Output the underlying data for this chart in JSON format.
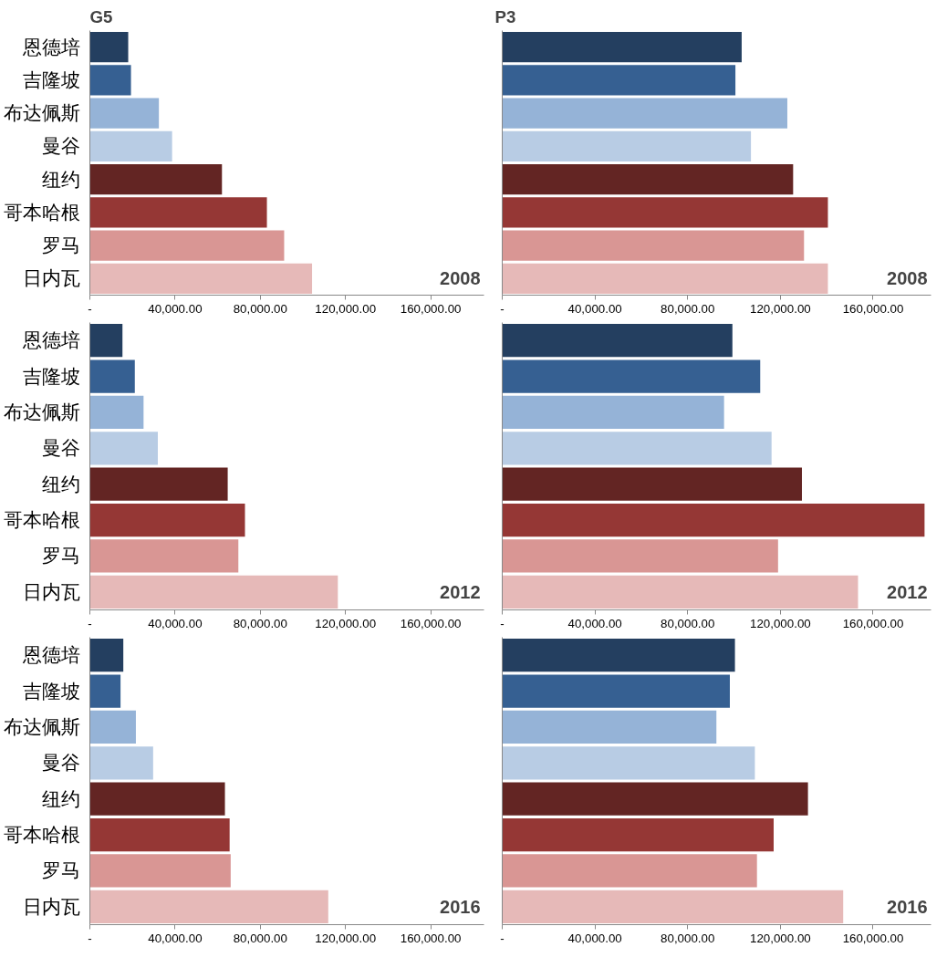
{
  "chart_data": [
    {
      "type": "bar",
      "orientation": "horizontal",
      "title": "G5",
      "categories": [
        "恩德培",
        "吉隆坡",
        "布达佩斯",
        "曼谷",
        "纽约",
        "哥本哈根",
        "罗马",
        "日内瓦"
      ],
      "values": [
        18000,
        19300,
        32400,
        38600,
        62000,
        83100,
        91200,
        104300
      ],
      "colors": [
        "#243f60",
        "#366092",
        "#95b3d7",
        "#b8cce4",
        "#632523",
        "#953735",
        "#d99694",
        "#e6b9b8"
      ],
      "xlim": [
        0,
        185000
      ],
      "xticks": [
        {
          "value": 0,
          "label": "-"
        },
        {
          "value": 40000,
          "label": "40,000.00"
        },
        {
          "value": 80000,
          "label": "80,000.00"
        },
        {
          "value": 120000,
          "label": "120,000.00"
        },
        {
          "value": 160000,
          "label": "160,000.00"
        }
      ],
      "annotations": [
        "2008"
      ]
    },
    {
      "type": "bar",
      "orientation": "horizontal",
      "title": "P3",
      "categories": [
        null,
        null,
        null,
        null,
        null,
        null,
        null,
        null
      ],
      "values": [
        103300,
        100600,
        123000,
        107300,
        125500,
        140500,
        130200,
        140500
      ],
      "colors": [
        "#243f60",
        "#366092",
        "#95b3d7",
        "#b8cce4",
        "#632523",
        "#953735",
        "#d99694",
        "#e6b9b8"
      ],
      "xlim": [
        0,
        185000
      ],
      "xticks": [
        {
          "value": 0,
          "label": "-"
        },
        {
          "value": 40000,
          "label": "40,000.00"
        },
        {
          "value": 80000,
          "label": "80,000.00"
        },
        {
          "value": 120000,
          "label": "120,000.00"
        },
        {
          "value": 160000,
          "label": "160,000.00"
        }
      ],
      "annotations": [
        "2008"
      ],
      "tick_labels": "x"
    },
    {
      "type": "bar",
      "orientation": "horizontal",
      "categories": [
        "恩德培",
        "吉隆坡",
        "布达佩斯",
        "曼谷",
        "纽约",
        "哥本哈根",
        "罗马",
        "日内瓦"
      ],
      "values": [
        15300,
        21100,
        25200,
        31900,
        64700,
        72800,
        69700,
        116400
      ],
      "colors": [
        "#243f60",
        "#366092",
        "#95b3d7",
        "#b8cce4",
        "#632523",
        "#953735",
        "#d99694",
        "#e6b9b8"
      ],
      "xlim": [
        0,
        185000
      ],
      "xticks": [
        {
          "value": 0,
          "label": "-"
        },
        {
          "value": 40000,
          "label": "40,000.00"
        },
        {
          "value": 80000,
          "label": "80,000.00"
        },
        {
          "value": 120000,
          "label": "120,000.00"
        },
        {
          "value": 160000,
          "label": "160,000.00"
        }
      ],
      "annotations": [
        "2012"
      ]
    },
    {
      "type": "bar",
      "orientation": "horizontal",
      "categories": [
        null,
        null,
        null,
        null,
        null,
        null,
        null,
        null
      ],
      "values": [
        99300,
        111300,
        95700,
        116200,
        129300,
        182200,
        119000,
        153500
      ],
      "colors": [
        "#243f60",
        "#366092",
        "#95b3d7",
        "#b8cce4",
        "#632523",
        "#953735",
        "#d99694",
        "#e6b9b8"
      ],
      "xlim": [
        0,
        185000
      ],
      "xticks": [
        {
          "value": 0,
          "label": "-"
        },
        {
          "value": 40000,
          "label": "40,000.00"
        },
        {
          "value": 80000,
          "label": "80,000.00"
        },
        {
          "value": 120000,
          "label": "120,000.00"
        },
        {
          "value": 160000,
          "label": "160,000.00"
        }
      ],
      "annotations": [
        "2012"
      ],
      "tick_labels": "x"
    },
    {
      "type": "bar",
      "orientation": "horizontal",
      "categories": [
        "恩德培",
        "吉隆坡",
        "布达佩斯",
        "曼谷",
        "纽约",
        "哥本哈根",
        "罗马",
        "日内瓦"
      ],
      "values": [
        15700,
        14400,
        21600,
        29700,
        63400,
        65600,
        66100,
        111900
      ],
      "colors": [
        "#243f60",
        "#366092",
        "#95b3d7",
        "#b8cce4",
        "#632523",
        "#953735",
        "#d99694",
        "#e6b9b8"
      ],
      "xlim": [
        0,
        185000
      ],
      "xticks": [
        {
          "value": 0,
          "label": "-"
        },
        {
          "value": 40000,
          "label": "40,000.00"
        },
        {
          "value": 80000,
          "label": "80,000.00"
        },
        {
          "value": 120000,
          "label": "120,000.00"
        },
        {
          "value": 160000,
          "label": "160,000.00"
        }
      ],
      "annotations": [
        "2016"
      ]
    },
    {
      "type": "bar",
      "orientation": "horizontal",
      "categories": [
        null,
        null,
        null,
        null,
        null,
        null,
        null,
        null
      ],
      "values": [
        100400,
        98200,
        92400,
        109000,
        131900,
        117100,
        109900,
        147100
      ],
      "colors": [
        "#243f60",
        "#366092",
        "#95b3d7",
        "#b8cce4",
        "#632523",
        "#953735",
        "#d99694",
        "#e6b9b8"
      ],
      "xlim": [
        0,
        185000
      ],
      "xticks": [
        {
          "value": 0,
          "label": "-"
        },
        {
          "value": 40000,
          "label": "40,000.00"
        },
        {
          "value": 80000,
          "label": "80,000.00"
        },
        {
          "value": 120000,
          "label": "120,000.00"
        },
        {
          "value": 160000,
          "label": "160,000.00"
        }
      ],
      "annotations": [
        "2016"
      ],
      "tick_labels": "x"
    }
  ]
}
